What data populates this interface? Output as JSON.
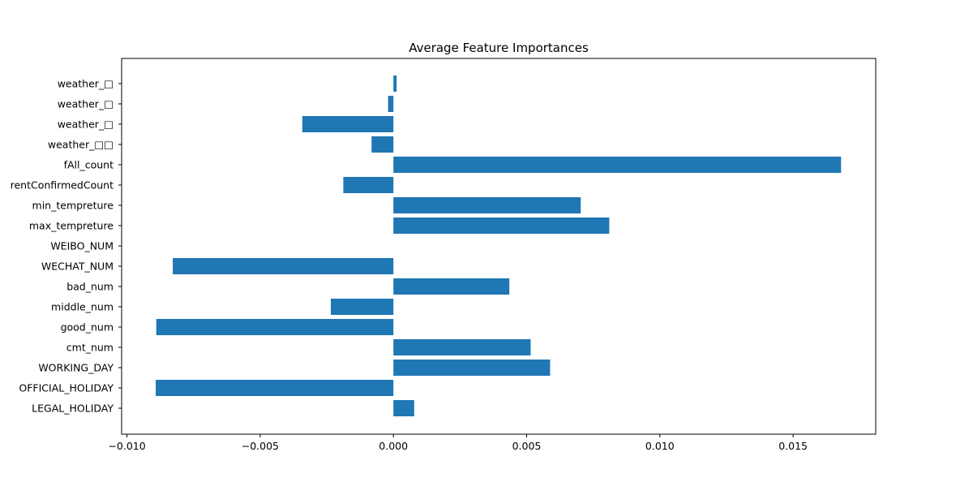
{
  "chart_data": {
    "type": "bar",
    "orientation": "horizontal",
    "title": "Average Feature Importances",
    "xlabel": "",
    "ylabel": "",
    "categories": [
      "LEGAL_HOLIDAY",
      "OFFICIAL_HOLIDAY",
      "WORKING_DAY",
      "cmt_num",
      "good_num",
      "middle_num",
      "bad_num",
      "WECHAT_NUM",
      "WEIBO_NUM",
      "max_tempreture",
      "min_tempreture",
      "rentConfirmedCount",
      "fAll_count",
      "weather_□□",
      "weather_□",
      "weather_□",
      "weather_□"
    ],
    "values": [
      0.00078,
      -0.00892,
      0.00588,
      0.00515,
      -0.0089,
      -0.00235,
      0.00435,
      -0.00828,
      0.0,
      0.0081,
      0.00703,
      -0.00188,
      0.0168,
      -0.00082,
      -0.00342,
      -0.0002,
      0.00012
    ],
    "xlim": [
      -0.0102,
      0.0181
    ],
    "xticks": [
      -0.01,
      -0.005,
      0.0,
      0.005,
      0.01,
      0.015
    ],
    "xtick_labels": [
      "−0.010",
      "−0.005",
      "0.000",
      "0.005",
      "0.010",
      "0.015"
    ],
    "grid": false,
    "legend": "none",
    "bar_color": "#1f77b4"
  }
}
